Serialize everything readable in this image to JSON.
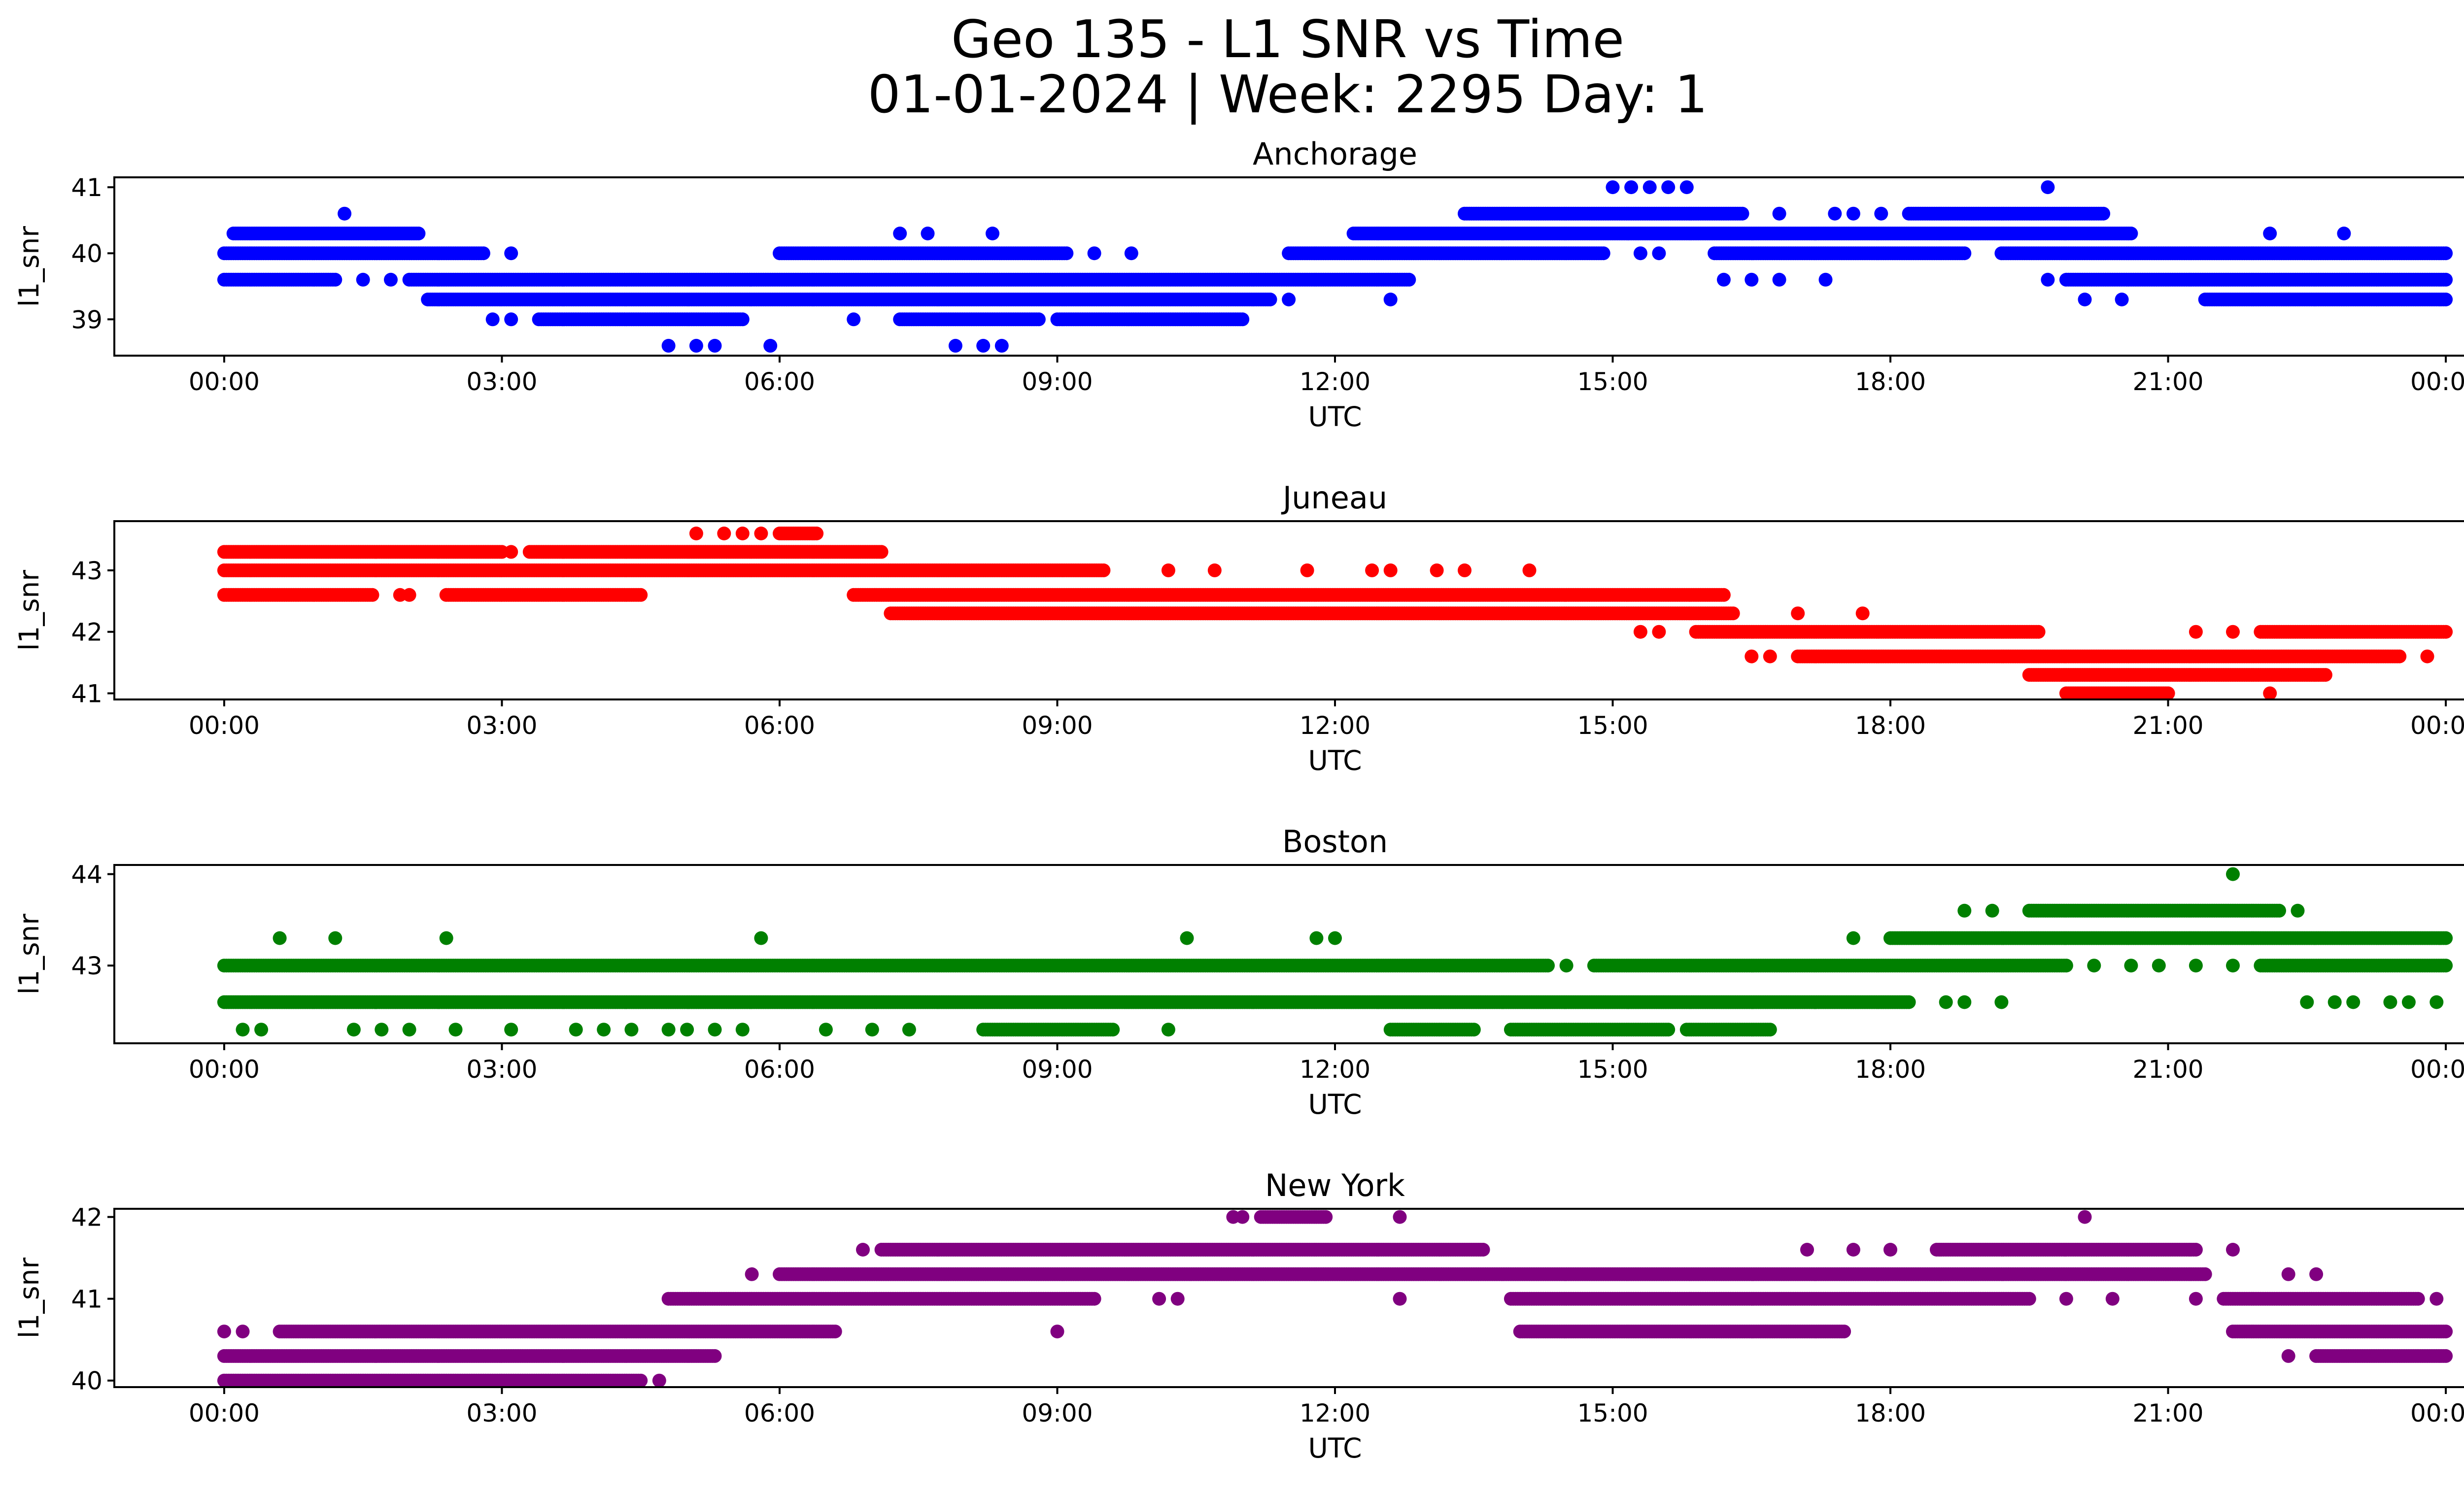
{
  "figure": {
    "title_line1": "Geo 135 - L1 SNR vs Time",
    "title_line2": "01-01-2024 | Week: 2295 Day: 1"
  },
  "chart_data": [
    {
      "type": "scatter",
      "title": "Anchorage",
      "xlabel": "UTC",
      "ylabel": "l1_snr",
      "xlim": [
        "00:00",
        "24:00"
      ],
      "ylim": [
        38.45,
        41.15
      ],
      "x_ticks": [
        "00:00",
        "03:00",
        "06:00",
        "09:00",
        "12:00",
        "15:00",
        "18:00",
        "21:00",
        "00:00"
      ],
      "y_ticks": [
        39,
        40,
        41
      ],
      "color": "#0000ff",
      "levels": [
        {
          "y": 41.0,
          "ranges": [],
          "points": [
            15.0,
            15.2,
            15.4,
            15.6,
            15.8,
            19.7
          ]
        },
        {
          "y": 40.6,
          "ranges": [
            [
              13.4,
              16.4
            ],
            [
              18.2,
              20.3
            ]
          ],
          "points": [
            1.3,
            16.8,
            17.4,
            17.6,
            17.9
          ]
        },
        {
          "y": 40.3,
          "ranges": [
            [
              0.1,
              2.1
            ],
            [
              12.2,
              20.6
            ]
          ],
          "points": [
            7.3,
            7.6,
            8.3,
            22.1,
            22.9
          ]
        },
        {
          "y": 40.0,
          "ranges": [
            [
              0.0,
              2.8
            ],
            [
              6.0,
              9.1
            ],
            [
              11.5,
              14.9
            ],
            [
              16.1,
              18.8
            ],
            [
              19.2,
              24.0
            ]
          ],
          "points": [
            3.1,
            9.4,
            9.8,
            15.3,
            15.5
          ]
        },
        {
          "y": 39.6,
          "ranges": [
            [
              0.0,
              1.2
            ],
            [
              2.0,
              12.8
            ],
            [
              19.9,
              24.0
            ]
          ],
          "points": [
            1.5,
            1.8,
            16.2,
            16.5,
            16.8,
            17.3,
            19.7
          ]
        },
        {
          "y": 39.3,
          "ranges": [
            [
              2.2,
              11.3
            ],
            [
              21.4,
              24.0
            ]
          ],
          "points": [
            11.5,
            12.6,
            20.1,
            20.5
          ]
        },
        {
          "y": 39.0,
          "ranges": [
            [
              3.4,
              5.6
            ],
            [
              7.3,
              8.8
            ],
            [
              9.0,
              11.0
            ]
          ],
          "points": [
            2.9,
            3.1,
            6.8
          ]
        },
        {
          "y": 38.6,
          "ranges": [],
          "points": [
            4.8,
            5.1,
            5.3,
            5.9,
            7.9,
            8.2,
            8.4
          ]
        }
      ]
    },
    {
      "type": "scatter",
      "title": "Juneau",
      "xlabel": "UTC",
      "ylabel": "l1_snr",
      "xlim": [
        "00:00",
        "24:00"
      ],
      "ylim": [
        40.9,
        43.8
      ],
      "x_ticks": [
        "00:00",
        "03:00",
        "06:00",
        "09:00",
        "12:00",
        "15:00",
        "18:00",
        "21:00",
        "00:00"
      ],
      "y_ticks": [
        41,
        42,
        43
      ],
      "color": "#ff0000",
      "levels": [
        {
          "y": 43.6,
          "ranges": [
            [
              6.0,
              6.4
            ]
          ],
          "points": [
            5.1,
            5.4,
            5.6,
            5.8
          ]
        },
        {
          "y": 43.3,
          "ranges": [
            [
              0.0,
              3.0
            ],
            [
              3.3,
              7.1
            ]
          ],
          "points": [
            3.1
          ]
        },
        {
          "y": 43.0,
          "ranges": [
            [
              0.0,
              9.5
            ]
          ],
          "points": [
            10.2,
            10.7,
            11.7,
            12.4,
            12.6,
            13.1,
            13.4,
            14.1
          ]
        },
        {
          "y": 42.6,
          "ranges": [
            [
              0.0,
              1.6
            ],
            [
              2.4,
              4.5
            ],
            [
              6.8,
              16.2
            ]
          ],
          "points": [
            1.9,
            2.0
          ]
        },
        {
          "y": 42.3,
          "ranges": [
            [
              7.2,
              16.3
            ]
          ],
          "points": [
            17.0,
            17.7
          ]
        },
        {
          "y": 42.0,
          "ranges": [
            [
              15.9,
              19.6
            ],
            [
              22.0,
              24.0
            ]
          ],
          "points": [
            15.3,
            15.5,
            21.3,
            21.7
          ]
        },
        {
          "y": 41.6,
          "ranges": [
            [
              17.0,
              23.5
            ]
          ],
          "points": [
            16.5,
            16.7,
            23.8
          ]
        },
        {
          "y": 41.3,
          "ranges": [
            [
              19.5,
              22.7
            ]
          ],
          "points": []
        },
        {
          "y": 41.0,
          "ranges": [
            [
              19.9,
              21.0
            ]
          ],
          "points": [
            22.1
          ]
        }
      ]
    },
    {
      "type": "scatter",
      "title": "Boston",
      "xlabel": "UTC",
      "ylabel": "l1_snr",
      "xlim": [
        "00:00",
        "24:00"
      ],
      "ylim": [
        42.15,
        44.1
      ],
      "x_ticks": [
        "00:00",
        "03:00",
        "06:00",
        "09:00",
        "12:00",
        "15:00",
        "18:00",
        "21:00",
        "00:00"
      ],
      "y_ticks": [
        43,
        44
      ],
      "color": "#008000",
      "levels": [
        {
          "y": 44.0,
          "ranges": [],
          "points": [
            21.7
          ]
        },
        {
          "y": 43.6,
          "ranges": [
            [
              19.5,
              22.2
            ]
          ],
          "points": [
            18.8,
            19.1,
            22.4
          ]
        },
        {
          "y": 43.3,
          "ranges": [
            [
              18.0,
              24.0
            ]
          ],
          "points": [
            0.6,
            1.2,
            2.4,
            5.8,
            10.4,
            11.8,
            12.0,
            17.6
          ]
        },
        {
          "y": 43.0,
          "ranges": [
            [
              0.0,
              14.3
            ],
            [
              14.8,
              19.9
            ],
            [
              22.0,
              24.0
            ]
          ],
          "points": [
            14.5,
            20.2,
            20.6,
            20.9,
            21.3,
            21.7
          ]
        },
        {
          "y": 42.6,
          "ranges": [
            [
              0.0,
              18.2
            ]
          ],
          "points": [
            18.6,
            18.8,
            19.2,
            22.5,
            22.8,
            23.0,
            23.4,
            23.6,
            23.9
          ]
        },
        {
          "y": 42.3,
          "ranges": [
            [
              8.2,
              9.6
            ],
            [
              12.6,
              13.5
            ],
            [
              13.9,
              15.6
            ],
            [
              15.8,
              16.7
            ]
          ],
          "points": [
            0.2,
            0.4,
            1.4,
            1.7,
            2.0,
            2.5,
            3.1,
            3.8,
            4.1,
            4.4,
            4.8,
            5.0,
            5.3,
            5.6,
            6.5,
            7.0,
            7.4,
            10.2
          ]
        }
      ]
    },
    {
      "type": "scatter",
      "title": "New York",
      "xlabel": "UTC",
      "ylabel": "l1_snr",
      "xlim": [
        "00:00",
        "24:00"
      ],
      "ylim": [
        39.92,
        42.1
      ],
      "x_ticks": [
        "00:00",
        "03:00",
        "06:00",
        "09:00",
        "12:00",
        "15:00",
        "18:00",
        "21:00",
        "00:00"
      ],
      "y_ticks": [
        40,
        41,
        42
      ],
      "color": "#800080",
      "levels": [
        {
          "y": 42.0,
          "ranges": [
            [
              11.2,
              11.9
            ]
          ],
          "points": [
            10.9,
            11.0,
            12.7,
            20.1
          ]
        },
        {
          "y": 41.6,
          "ranges": [
            [
              7.1,
              13.6
            ],
            [
              18.5,
              21.3
            ]
          ],
          "points": [
            6.9,
            17.1,
            17.6,
            18.0,
            21.7
          ]
        },
        {
          "y": 41.3,
          "ranges": [
            [
              6.0,
              21.4
            ]
          ],
          "points": [
            5.7,
            22.3,
            22.6
          ]
        },
        {
          "y": 41.0,
          "ranges": [
            [
              4.8,
              9.4
            ],
            [
              13.9,
              19.5
            ],
            [
              21.6,
              23.7
            ]
          ],
          "points": [
            10.1,
            10.3,
            12.7,
            19.9,
            20.4,
            21.3,
            23.9
          ]
        },
        {
          "y": 40.6,
          "ranges": [
            [
              0.6,
              6.6
            ],
            [
              14.0,
              17.5
            ],
            [
              21.7,
              24.0
            ]
          ],
          "points": [
            0.0,
            0.2,
            9.0
          ]
        },
        {
          "y": 40.3,
          "ranges": [
            [
              0.0,
              5.3
            ],
            [
              22.6,
              24.0
            ]
          ],
          "points": [
            22.3
          ]
        },
        {
          "y": 40.0,
          "ranges": [
            [
              0.0,
              4.5
            ]
          ],
          "points": [
            4.7
          ]
        }
      ]
    }
  ]
}
